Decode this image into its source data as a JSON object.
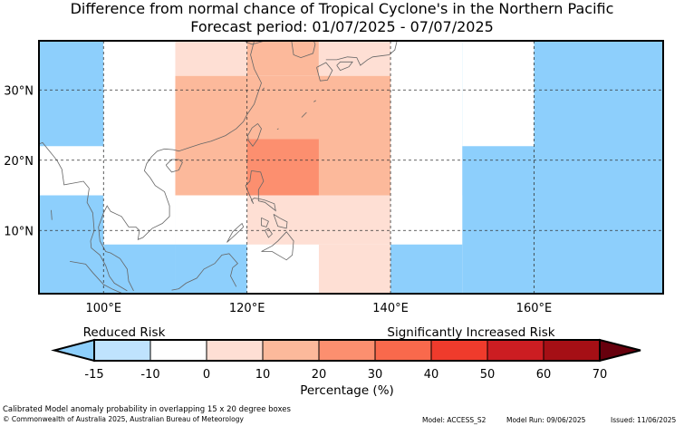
{
  "title_line1": "Difference from normal chance of Tropical Cyclone's in the Northern Pacific",
  "title_line2": "Forecast period: 01/07/2025 - 07/07/2025",
  "map": {
    "lon_range": [
      91,
      178
    ],
    "lat_range": [
      1,
      37
    ],
    "lon_ticks": [
      {
        "lon": 100,
        "label": "100°E"
      },
      {
        "lon": 120,
        "label": "120°E"
      },
      {
        "lon": 140,
        "label": "140°E"
      },
      {
        "lon": 160,
        "label": "160°E"
      }
    ],
    "lat_ticks": [
      {
        "lat": 10,
        "label": "10°N"
      },
      {
        "lat": 20,
        "label": "20°N"
      },
      {
        "lat": 30,
        "label": "30°N"
      }
    ],
    "grid": true
  },
  "chart_data": {
    "type": "heatmap",
    "units": "Percentage (%)",
    "cells": [
      {
        "lon": [
          91,
          100
        ],
        "lat": [
          1,
          37
        ],
        "bin": "-15 to -10"
      },
      {
        "lon": [
          100,
          110
        ],
        "lat": [
          1,
          15
        ],
        "bin": "-15 to -10"
      },
      {
        "lon": [
          110,
          120
        ],
        "lat": [
          1,
          8
        ],
        "bin": "-15 to -10"
      },
      {
        "lon": [
          130,
          140
        ],
        "lat": [
          1,
          8
        ],
        "bin": "0 to 10"
      },
      {
        "lon": [
          140,
          150
        ],
        "lat": [
          1,
          15
        ],
        "bin": "-15 to -10"
      },
      {
        "lon": [
          150,
          178
        ],
        "lat": [
          1,
          37
        ],
        "bin": "-15 to -10"
      },
      {
        "lon": [
          91,
          100
        ],
        "lat": [
          15,
          22
        ],
        "bin": "-10 to 0"
      },
      {
        "lon": [
          100,
          110
        ],
        "lat": [
          15,
          22
        ],
        "bin": "-10 to 0"
      },
      {
        "lon": [
          100,
          110
        ],
        "lat": [
          8,
          15
        ],
        "bin": "-10 to 0"
      },
      {
        "lon": [
          100,
          110
        ],
        "lat": [
          32,
          37
        ],
        "bin": "-10 to 0"
      },
      {
        "lon": [
          120,
          130
        ],
        "lat": [
          1,
          8
        ],
        "bin": "-10 to 0"
      },
      {
        "lon": [
          140,
          150
        ],
        "lat": [
          8,
          15
        ],
        "bin": "-10 to 0"
      },
      {
        "lon": [
          150,
          160
        ],
        "lat": [
          22,
          37
        ],
        "bin": "-10 to 0"
      },
      {
        "lon": [
          110,
          120
        ],
        "lat": [
          32,
          37
        ],
        "bin": "0 to 10"
      },
      {
        "lon": [
          130,
          140
        ],
        "lat": [
          32,
          37
        ],
        "bin": "0 to 10"
      },
      {
        "lon": [
          120,
          140
        ],
        "lat": [
          8,
          15
        ],
        "bin": "0 to 10"
      },
      {
        "lon": [
          110,
          140
        ],
        "lat": [
          15,
          32
        ],
        "bin": "10 to 20"
      },
      {
        "lon": [
          120,
          130
        ],
        "lat": [
          32,
          37
        ],
        "bin": "10 to 20"
      },
      {
        "lon": [
          120,
          130
        ],
        "lat": [
          15,
          23
        ],
        "bin": "20 to 30"
      }
    ]
  },
  "colorbar": {
    "left_label": "Reduced Risk",
    "right_label": "Significantly Increased Risk",
    "xlabel": "Percentage (%)",
    "ticks": [
      "-15",
      "-10",
      "0",
      "10",
      "20",
      "30",
      "40",
      "50",
      "60",
      "70"
    ],
    "bins": [
      {
        "name": "-15 to -10",
        "color": "#bfe3fd"
      },
      {
        "name": "-10 to 0",
        "color": "#ffffff"
      },
      {
        "name": "0 to 10",
        "color": "#fedfd4"
      },
      {
        "name": "10 to 20",
        "color": "#fcb99b"
      },
      {
        "name": "20 to 30",
        "color": "#fc8f6f"
      },
      {
        "name": "30 to 40",
        "color": "#f9694c"
      },
      {
        "name": "40 to 50",
        "color": "#ef3b2c"
      },
      {
        "name": "50 to 60",
        "color": "#cc1d22"
      },
      {
        "name": "60 to 70",
        "color": "#a50f15"
      }
    ],
    "under_color": "#8dcffc",
    "over_color": "#67000d"
  },
  "footer": {
    "note": "Calibrated Model anomaly probability in overlapping 15 x 20 degree boxes",
    "copyright": "© Commonwealth of Australia 2025, Australian Bureau of Meteorology",
    "model": "Model: ACCESS_S2",
    "model_run": "Model Run: 09/06/2025",
    "issued": "Issued: 11/06/2025"
  }
}
